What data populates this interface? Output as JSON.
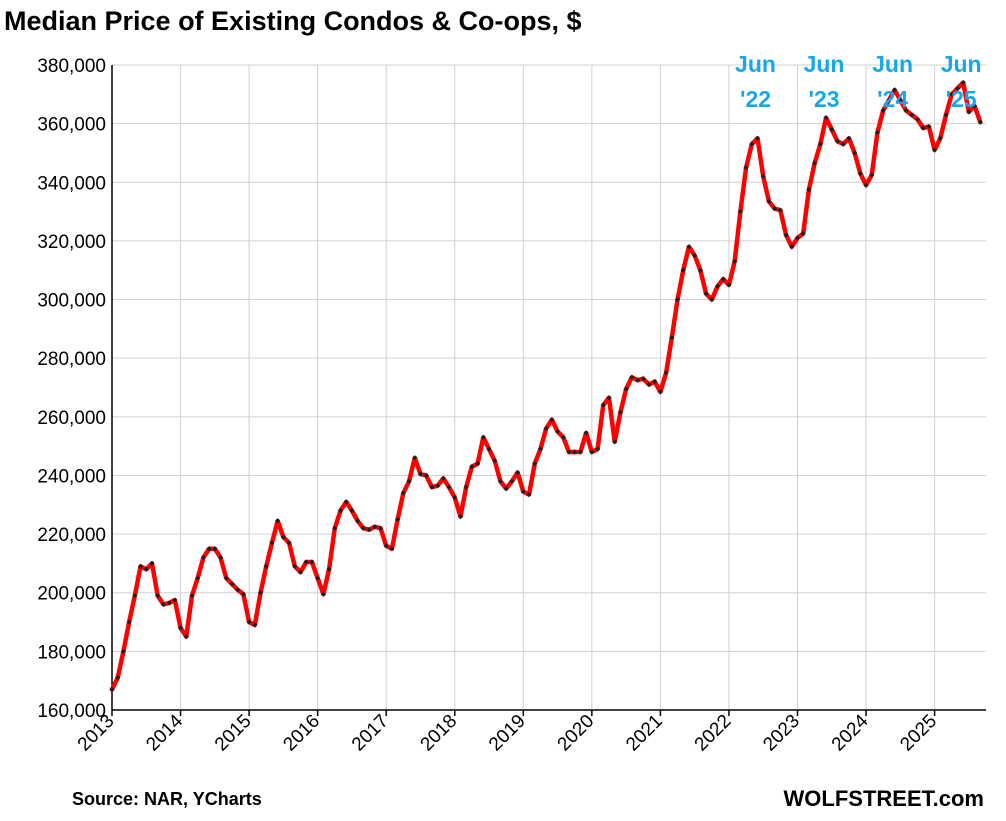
{
  "chart_data": {
    "type": "line",
    "title": "Median Price of Existing Condos & Co-ops, $",
    "xlabel": "",
    "ylabel": "",
    "ylim": [
      160000,
      380000
    ],
    "yticks": [
      "160,000",
      "180,000",
      "200,000",
      "220,000",
      "240,000",
      "260,000",
      "280,000",
      "300,000",
      "320,000",
      "340,000",
      "360,000",
      "380,000"
    ],
    "ytick_values": [
      160000,
      180000,
      200000,
      220000,
      240000,
      260000,
      280000,
      300000,
      320000,
      340000,
      360000,
      380000
    ],
    "xticks": [
      "2013",
      "2014",
      "2015",
      "2016",
      "2017",
      "2018",
      "2019",
      "2020",
      "2021",
      "2022",
      "2023",
      "2024",
      "2025"
    ],
    "x_start": "2013-01",
    "x_end": "2025-09",
    "grid": true,
    "legend": "none",
    "colors": {
      "line": "#ff0000",
      "markers": "#222222",
      "annotation": "#1aa7e8",
      "grid": "#d0d0d0"
    },
    "series": [
      {
        "values": [
          167000,
          171000,
          180000,
          190000,
          199000,
          209000,
          208000,
          210000,
          199000,
          196000,
          196500,
          197500,
          188000,
          185000,
          199000,
          205000,
          212000,
          215000,
          215000,
          212000,
          205000,
          203000,
          201000,
          199500,
          190000,
          189000,
          200000,
          209000,
          217000,
          224500,
          219000,
          217000,
          209000,
          207000,
          210500,
          210500,
          205000,
          199500,
          208000,
          222000,
          228000,
          231000,
          228000,
          224500,
          222000,
          221500,
          222500,
          222000,
          216000,
          215000,
          225000,
          234000,
          238000,
          246000,
          240500,
          240000,
          236000,
          236500,
          239000,
          236000,
          232500,
          226000,
          236000,
          243000,
          244000,
          253000,
          249000,
          245000,
          238000,
          235500,
          238000,
          241000,
          234500,
          233500,
          244000,
          249000,
          256000,
          259000,
          255000,
          253000,
          248000,
          248000,
          248000,
          254500,
          248000,
          249000,
          264000,
          266500,
          251500,
          261500,
          269500,
          273500,
          272500,
          273000,
          271000,
          272000,
          268500,
          275000,
          287000,
          300000,
          310000,
          318000,
          315000,
          310000,
          302000,
          300000,
          304500,
          307000,
          305000,
          313000,
          330000,
          345000,
          353000,
          355000,
          342000,
          333500,
          331000,
          330500,
          322000,
          318000,
          321000,
          322500,
          337500,
          346500,
          353000,
          362000,
          358000,
          354000,
          353000,
          355000,
          350000,
          343000,
          339000,
          342500,
          357000,
          364500,
          368000,
          371500,
          368000,
          364500,
          363000,
          361500,
          358500,
          359000,
          351000,
          355000,
          363000,
          370000,
          372000,
          374000,
          364000,
          366000,
          360500
        ]
      }
    ],
    "annotations": [
      {
        "line1": "Jun",
        "line2": "'22",
        "month_index": 113
      },
      {
        "line1": "Jun",
        "line2": "'23",
        "month_index": 125
      },
      {
        "line1": "Jun",
        "line2": "'24",
        "month_index": 137
      },
      {
        "line1": "Jun",
        "line2": "'25",
        "month_index": 149
      }
    ]
  },
  "footer": {
    "source": "Source: NAR, YCharts",
    "brand": "WOLFSTREET.com"
  }
}
